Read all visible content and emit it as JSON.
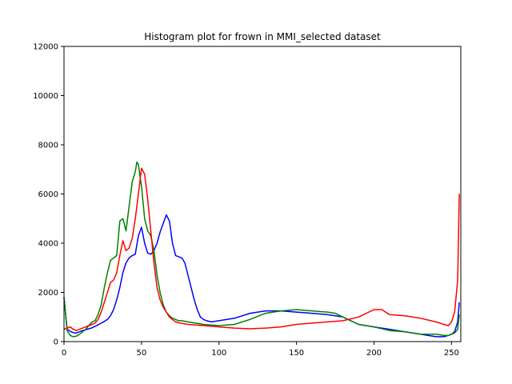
{
  "chart_data": {
    "type": "line",
    "title": "Histogram plot for frown in MMI_selected dataset",
    "xlabel": "",
    "ylabel": "",
    "xlim": [
      0,
      256
    ],
    "ylim": [
      0,
      12000
    ],
    "xticks": [
      0,
      50,
      100,
      150,
      200,
      250
    ],
    "yticks": [
      0,
      2000,
      4000,
      6000,
      8000,
      10000,
      12000
    ],
    "grid": false,
    "series": [
      {
        "color": "#0000ff",
        "x": [
          0,
          2,
          4,
          6,
          8,
          10,
          12,
          14,
          16,
          18,
          20,
          22,
          24,
          26,
          28,
          30,
          32,
          34,
          36,
          38,
          40,
          42,
          44,
          46,
          48,
          50,
          52,
          54,
          56,
          58,
          60,
          62,
          64,
          66,
          68,
          70,
          72,
          74,
          76,
          78,
          80,
          82,
          84,
          86,
          88,
          90,
          92,
          95,
          100,
          110,
          120,
          130,
          140,
          150,
          160,
          170,
          180,
          190,
          200,
          210,
          220,
          230,
          240,
          245,
          248,
          250,
          252,
          254,
          255
        ],
        "values": [
          1800,
          500,
          420,
          360,
          350,
          400,
          450,
          480,
          520,
          560,
          620,
          680,
          750,
          820,
          900,
          1050,
          1300,
          1700,
          2200,
          2800,
          3200,
          3400,
          3500,
          3550,
          4300,
          4650,
          4000,
          3600,
          3550,
          3700,
          4000,
          4450,
          4800,
          5150,
          4900,
          4000,
          3500,
          3450,
          3400,
          3200,
          2700,
          2200,
          1700,
          1300,
          1000,
          900,
          850,
          800,
          850,
          950,
          1150,
          1250,
          1250,
          1200,
          1150,
          1100,
          1000,
          700,
          600,
          500,
          400,
          300,
          200,
          200,
          250,
          300,
          400,
          800,
          1600
        ]
      },
      {
        "color": "#008000",
        "x": [
          0,
          2,
          4,
          6,
          8,
          10,
          12,
          14,
          16,
          18,
          20,
          22,
          24,
          26,
          28,
          30,
          32,
          34,
          36,
          38,
          40,
          42,
          44,
          46,
          47,
          48,
          50,
          52,
          54,
          56,
          58,
          60,
          62,
          64,
          66,
          68,
          70,
          72,
          74,
          76,
          80,
          90,
          100,
          110,
          120,
          130,
          140,
          150,
          160,
          170,
          175,
          180,
          190,
          200,
          210,
          220,
          230,
          240,
          245,
          248,
          250,
          252,
          254,
          255
        ],
        "values": [
          1800,
          450,
          250,
          200,
          220,
          300,
          400,
          500,
          650,
          800,
          850,
          1100,
          1500,
          2200,
          2800,
          3300,
          3400,
          3500,
          4900,
          5000,
          4500,
          5500,
          6500,
          6900,
          7300,
          7200,
          6300,
          5000,
          4500,
          4300,
          3700,
          2700,
          2000,
          1500,
          1200,
          1050,
          950,
          900,
          850,
          850,
          800,
          700,
          650,
          700,
          900,
          1150,
          1250,
          1300,
          1250,
          1200,
          1150,
          1000,
          700,
          600,
          450,
          400,
          300,
          300,
          250,
          250,
          300,
          350,
          500,
          1100
        ]
      },
      {
        "color": "#ff0000",
        "x": [
          0,
          2,
          4,
          6,
          8,
          10,
          12,
          14,
          16,
          18,
          20,
          22,
          24,
          26,
          28,
          30,
          32,
          34,
          36,
          38,
          40,
          42,
          44,
          46,
          48,
          50,
          52,
          54,
          56,
          58,
          60,
          62,
          64,
          66,
          68,
          70,
          72,
          75,
          80,
          90,
          100,
          110,
          120,
          130,
          140,
          150,
          160,
          170,
          180,
          190,
          200,
          205,
          210,
          220,
          230,
          240,
          245,
          248,
          250,
          252,
          254,
          255
        ],
        "values": [
          500,
          550,
          600,
          500,
          450,
          500,
          550,
          600,
          650,
          700,
          750,
          900,
          1200,
          1600,
          2000,
          2400,
          2500,
          2800,
          3500,
          4100,
          3700,
          3800,
          4200,
          5000,
          6000,
          7050,
          6800,
          5800,
          4500,
          3200,
          2200,
          1700,
          1400,
          1200,
          1000,
          900,
          800,
          750,
          700,
          650,
          600,
          550,
          520,
          550,
          600,
          700,
          750,
          800,
          850,
          1000,
          1300,
          1300,
          1100,
          1050,
          950,
          800,
          700,
          650,
          800,
          1200,
          2500,
          6000
        ]
      }
    ]
  }
}
